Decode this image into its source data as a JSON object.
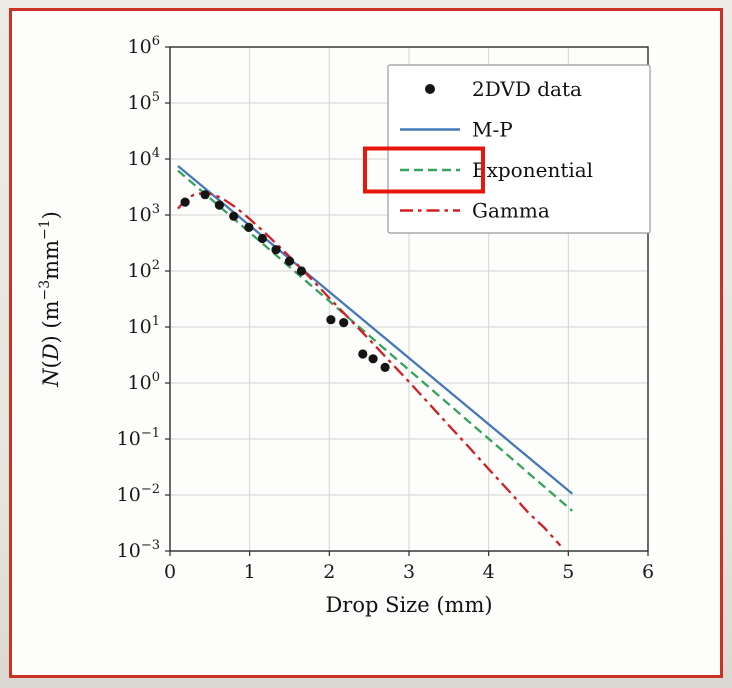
{
  "page": {
    "background": "#e8e5df",
    "frame_border_color": "#cb3125"
  },
  "chart_data": {
    "type": "scatter",
    "subtype": "semilog-y drop size distribution with fitted curves",
    "title": "",
    "xlabel": "Drop Size (mm)",
    "ylabel": "N(D) (m⁻³mm⁻¹)",
    "ylabel_parts": [
      {
        "t": "N",
        "italic": true
      },
      {
        "t": "("
      },
      {
        "t": "D",
        "italic": true
      },
      {
        "t": ") (m"
      },
      {
        "t": "−3",
        "sup": true
      },
      {
        "t": "mm"
      },
      {
        "t": "−1",
        "sup": true
      },
      {
        "t": ")"
      }
    ],
    "xlim": [
      0,
      6
    ],
    "x_ticks": [
      0,
      1,
      2,
      3,
      4,
      5,
      6
    ],
    "ylim_exponents": [
      -3,
      6
    ],
    "y_tick_exponents": [
      6,
      5,
      4,
      3,
      2,
      1,
      0,
      -1,
      -2,
      -3
    ],
    "grid": true,
    "grid_color": "#d4d4d4",
    "axis_color": "#2b2b2b",
    "scatter": {
      "name": "2DVD data",
      "color": "#141414",
      "marker": "circle",
      "points": [
        [
          0.19,
          1700
        ],
        [
          0.44,
          2300
        ],
        [
          0.62,
          1500
        ],
        [
          0.8,
          950
        ],
        [
          0.99,
          600
        ],
        [
          1.16,
          380
        ],
        [
          1.33,
          240
        ],
        [
          1.5,
          150
        ],
        [
          1.65,
          100
        ],
        [
          2.02,
          13.5
        ],
        [
          2.18,
          12
        ],
        [
          2.42,
          3.3
        ],
        [
          2.55,
          2.7
        ],
        [
          2.7,
          1.9
        ]
      ]
    },
    "series": [
      {
        "name": "M-P",
        "color": "#4478b8",
        "style": "solid",
        "points": [
          [
            0.1,
            7500
          ],
          [
            5.05,
            0.0105
          ]
        ]
      },
      {
        "name": "Exponential",
        "color": "#35a35c",
        "style": "dashed",
        "points": [
          [
            0.1,
            6200
          ],
          [
            5.05,
            0.0052
          ]
        ]
      },
      {
        "name": "Gamma",
        "color": "#d01f24",
        "style": "dashdot",
        "points": [
          [
            0.1,
            1300
          ],
          [
            0.2,
            1900
          ],
          [
            0.3,
            2300
          ],
          [
            0.4,
            2450
          ],
          [
            0.5,
            2400
          ],
          [
            0.6,
            2150
          ],
          [
            0.7,
            1800
          ],
          [
            0.8,
            1450
          ],
          [
            0.9,
            1120
          ],
          [
            1.0,
            850
          ],
          [
            1.2,
            470
          ],
          [
            1.4,
            250
          ],
          [
            1.6,
            130
          ],
          [
            1.8,
            66
          ],
          [
            2.0,
            33
          ],
          [
            2.25,
            14
          ],
          [
            2.5,
            6
          ],
          [
            2.75,
            2.5
          ],
          [
            3.0,
            1.05
          ],
          [
            3.25,
            0.43
          ],
          [
            3.5,
            0.175
          ],
          [
            3.75,
            0.072
          ],
          [
            4.0,
            0.029
          ],
          [
            4.25,
            0.012
          ],
          [
            4.5,
            0.0048
          ],
          [
            4.7,
            0.0026
          ],
          [
            4.9,
            0.00125
          ]
        ]
      }
    ],
    "legend": {
      "position": "upper right",
      "entries": [
        {
          "label": "2DVD data",
          "swatch": "marker",
          "color": "#141414"
        },
        {
          "label": "M-P",
          "swatch": "line-solid",
          "color": "#4478b8"
        },
        {
          "label": "Exponential",
          "swatch": "line-dashed",
          "color": "#35a35c"
        },
        {
          "label": "Gamma",
          "swatch": "line-dashdot",
          "color": "#d01f24"
        }
      ]
    },
    "annotation": {
      "type": "highlight-box",
      "color": "#e8160c",
      "target_legend_entry": "Exponential"
    }
  }
}
